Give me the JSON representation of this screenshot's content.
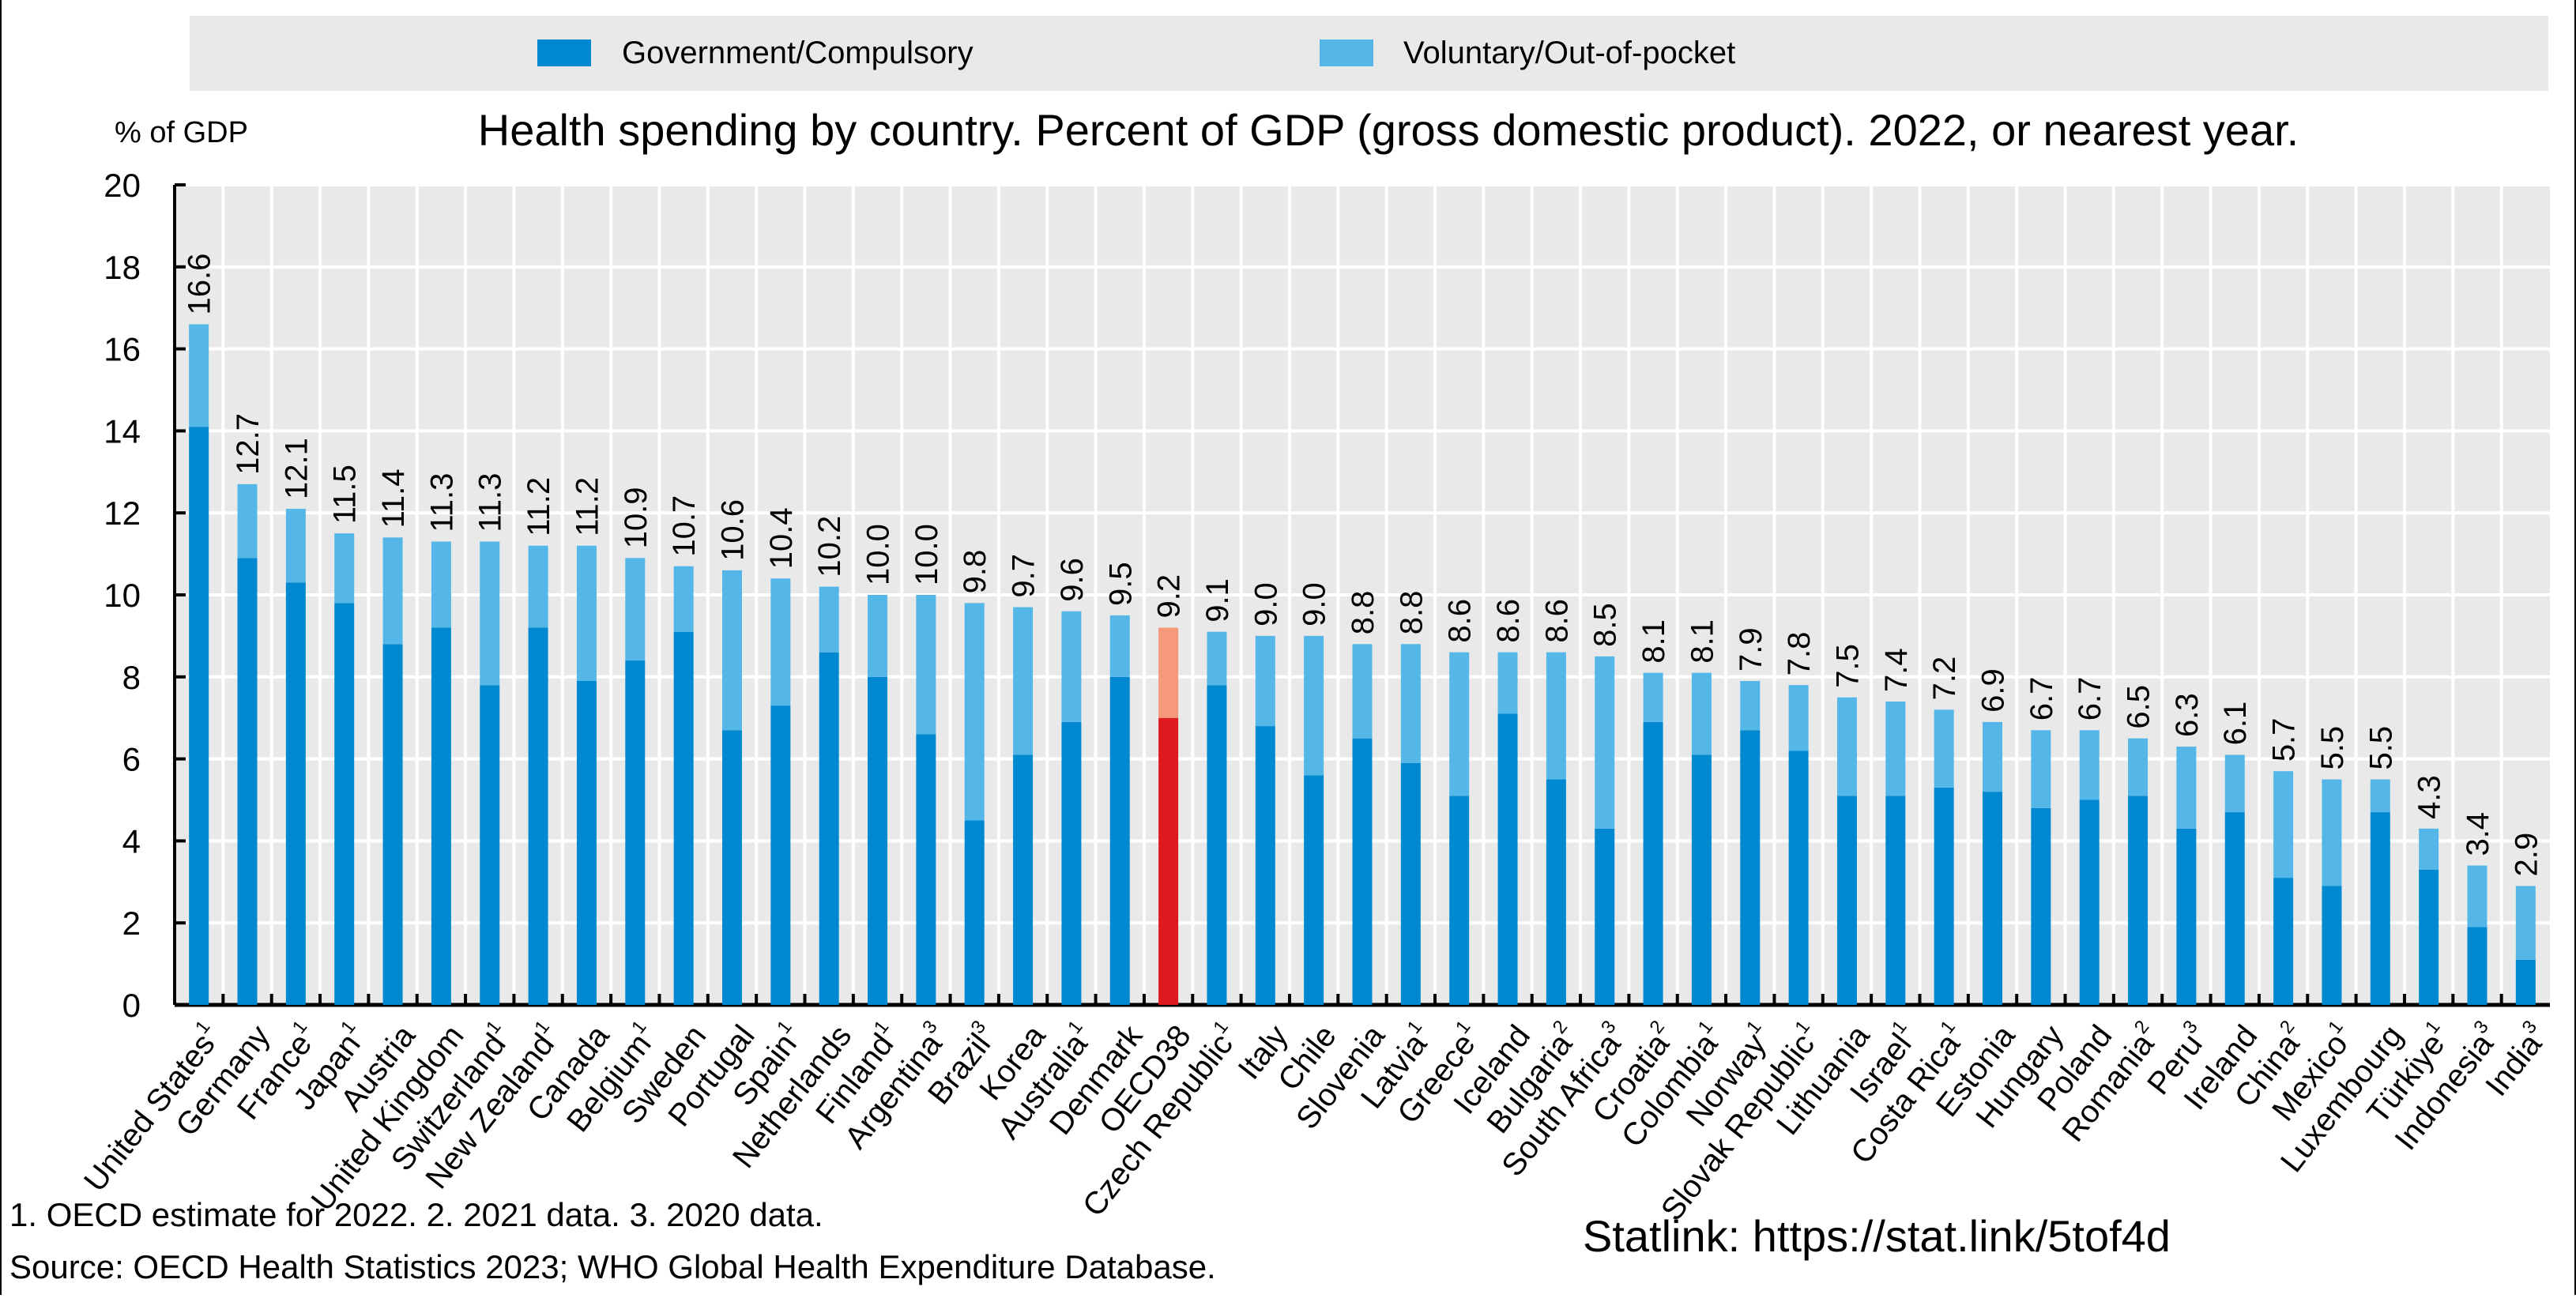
{
  "chart_data": {
    "type": "bar",
    "stacked": true,
    "title": "Health spending by country. Percent of GDP (gross domestic product). 2022, or nearest year.",
    "ylabel": "% of GDP",
    "ylim": [
      0,
      20
    ],
    "yticks": [
      0,
      2,
      4,
      6,
      8,
      10,
      12,
      14,
      16,
      18,
      20
    ],
    "grid": true,
    "legend_placement": "top",
    "highlight_category": "OECD38",
    "colors": {
      "government": "#0089D0",
      "voluntary": "#55B7E8",
      "highlight_government": "#DD1A22",
      "highlight_voluntary": "#F5997A",
      "plot_background": "#E9E9E9",
      "legend_background": "#E9E9E9"
    },
    "categories": [
      {
        "name": "United States",
        "note": "1"
      },
      {
        "name": "Germany",
        "note": ""
      },
      {
        "name": "France",
        "note": "1"
      },
      {
        "name": "Japan",
        "note": "1"
      },
      {
        "name": "Austria",
        "note": ""
      },
      {
        "name": "United Kingdom",
        "note": ""
      },
      {
        "name": "Switzerland",
        "note": "1"
      },
      {
        "name": "New Zealand",
        "note": "1"
      },
      {
        "name": "Canada",
        "note": ""
      },
      {
        "name": "Belgium",
        "note": "1"
      },
      {
        "name": "Sweden",
        "note": ""
      },
      {
        "name": "Portugal",
        "note": ""
      },
      {
        "name": "Spain",
        "note": "1"
      },
      {
        "name": "Netherlands",
        "note": ""
      },
      {
        "name": "Finland",
        "note": "1"
      },
      {
        "name": "Argentina",
        "note": "3"
      },
      {
        "name": "Brazil",
        "note": "3"
      },
      {
        "name": "Korea",
        "note": ""
      },
      {
        "name": "Australia",
        "note": "1"
      },
      {
        "name": "Denmark",
        "note": ""
      },
      {
        "name": "OECD38",
        "note": ""
      },
      {
        "name": "Czech Republic",
        "note": "1"
      },
      {
        "name": "Italy",
        "note": ""
      },
      {
        "name": "Chile",
        "note": ""
      },
      {
        "name": "Slovenia",
        "note": ""
      },
      {
        "name": "Latvia",
        "note": "1"
      },
      {
        "name": "Greece",
        "note": "1"
      },
      {
        "name": "Iceland",
        "note": ""
      },
      {
        "name": "Bulgaria",
        "note": "2"
      },
      {
        "name": "South Africa",
        "note": "3"
      },
      {
        "name": "Croatia",
        "note": "2"
      },
      {
        "name": "Colombia",
        "note": "1"
      },
      {
        "name": "Norway",
        "note": "1"
      },
      {
        "name": "Slovak Republic",
        "note": "1"
      },
      {
        "name": "Lithuania",
        "note": ""
      },
      {
        "name": "Israel",
        "note": "1"
      },
      {
        "name": "Costa Rica",
        "note": "1"
      },
      {
        "name": "Estonia",
        "note": ""
      },
      {
        "name": "Hungary",
        "note": ""
      },
      {
        "name": "Poland",
        "note": ""
      },
      {
        "name": "Romania",
        "note": "2"
      },
      {
        "name": "Peru",
        "note": "3"
      },
      {
        "name": "Ireland",
        "note": ""
      },
      {
        "name": "China",
        "note": "2"
      },
      {
        "name": "Mexico",
        "note": "1"
      },
      {
        "name": "Luxembourg",
        "note": ""
      },
      {
        "name": "Türkiye",
        "note": "1"
      },
      {
        "name": "Indonesia",
        "note": "3"
      },
      {
        "name": "India",
        "note": "3"
      }
    ],
    "series": [
      {
        "name": "Government/Compulsory",
        "values": [
          14.1,
          10.9,
          10.3,
          9.8,
          8.8,
          9.2,
          7.8,
          9.2,
          7.9,
          8.4,
          9.1,
          6.7,
          7.3,
          8.6,
          8.0,
          6.6,
          4.5,
          6.1,
          6.9,
          8.0,
          7.0,
          7.8,
          6.8,
          5.6,
          6.5,
          5.9,
          5.1,
          7.1,
          5.5,
          4.3,
          6.9,
          6.1,
          6.7,
          6.2,
          5.1,
          5.1,
          5.3,
          5.2,
          4.8,
          5.0,
          5.1,
          4.3,
          4.7,
          3.1,
          2.9,
          4.7,
          3.3,
          1.9,
          1.1
        ]
      },
      {
        "name": "Voluntary/Out-of-pocket",
        "values": [
          2.5,
          1.8,
          1.8,
          1.7,
          2.6,
          2.1,
          3.5,
          2.0,
          3.3,
          2.5,
          1.6,
          3.9,
          3.1,
          1.6,
          2.0,
          3.4,
          5.3,
          3.6,
          2.7,
          1.5,
          2.2,
          1.3,
          2.2,
          3.4,
          2.3,
          2.9,
          3.5,
          1.5,
          3.1,
          4.2,
          1.2,
          2.0,
          1.2,
          1.6,
          2.4,
          2.3,
          1.9,
          1.7,
          1.9,
          1.7,
          1.4,
          2.0,
          1.4,
          2.6,
          2.6,
          0.8,
          1.0,
          1.5,
          1.8
        ]
      }
    ],
    "totals": [
      "16.6",
      "12.7",
      "12.1",
      "11.5",
      "11.4",
      "11.3",
      "11.3",
      "11.2",
      "11.2",
      "10.9",
      "10.7",
      "10.6",
      "10.4",
      "10.2",
      "10.0",
      "10.0",
      "9.8",
      "9.7",
      "9.6",
      "9.5",
      "9.2",
      "9.1",
      "9.0",
      "9.0",
      "8.8",
      "8.8",
      "8.6",
      "8.6",
      "8.6",
      "8.5",
      "8.1",
      "8.1",
      "7.9",
      "7.8",
      "7.5",
      "7.4",
      "7.2",
      "6.9",
      "6.7",
      "6.7",
      "6.5",
      "6.3",
      "6.1",
      "5.7",
      "5.5",
      "5.5",
      "4.3",
      "3.4",
      "2.9"
    ]
  },
  "footnotes": {
    "notes": "1. OECD estimate for 2022. 2. 2021 data. 3. 2020 data.",
    "source": "Source: OECD Health Statistics 2023; WHO Global Health Expenditure Database.",
    "statlink": "Statlink: https://stat.link/5tof4d"
  }
}
